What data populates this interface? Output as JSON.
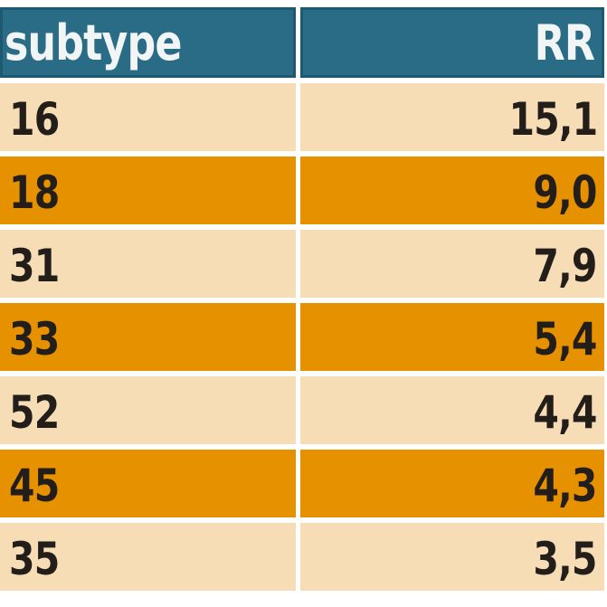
{
  "table": {
    "header": {
      "subtype_label": "subtype",
      "rr_label": "RR"
    },
    "rows": [
      {
        "subtype": "16",
        "rr": "15,1",
        "highlight": false
      },
      {
        "subtype": "18",
        "rr": "9,0",
        "highlight": true
      },
      {
        "subtype": "31",
        "rr": "7,9",
        "highlight": false
      },
      {
        "subtype": "33",
        "rr": "5,4",
        "highlight": true
      },
      {
        "subtype": "52",
        "rr": "4,4",
        "highlight": false
      },
      {
        "subtype": "45",
        "rr": "4,3",
        "highlight": true
      },
      {
        "subtype": "35",
        "rr": "3,5",
        "highlight": false
      }
    ],
    "colors": {
      "header_bg": "#2a6c85",
      "header_border": "#1d5970",
      "header_text": "#f2f5f6",
      "row_light_bg": "#f6ddb5",
      "row_dark_bg": "#e69100",
      "cell_text": "#231e1a",
      "page_bg": "#ffffff"
    }
  },
  "chart_data": {
    "type": "table",
    "title": "",
    "columns": [
      "subtype",
      "RR"
    ],
    "rows": [
      [
        "16",
        "15,1"
      ],
      [
        "18",
        "9,0"
      ],
      [
        "31",
        "7,9"
      ],
      [
        "33",
        "5,4"
      ],
      [
        "52",
        "4,4"
      ],
      [
        "45",
        "4,3"
      ],
      [
        "35",
        "3,5"
      ]
    ],
    "rr_values_numeric": [
      15.1,
      9.0,
      7.9,
      5.4,
      4.4,
      4.3,
      3.5
    ],
    "notes": "Two-column data table; rows alternate light peach and orange backgrounds; decimal comma formatting; RR column right-aligned."
  }
}
